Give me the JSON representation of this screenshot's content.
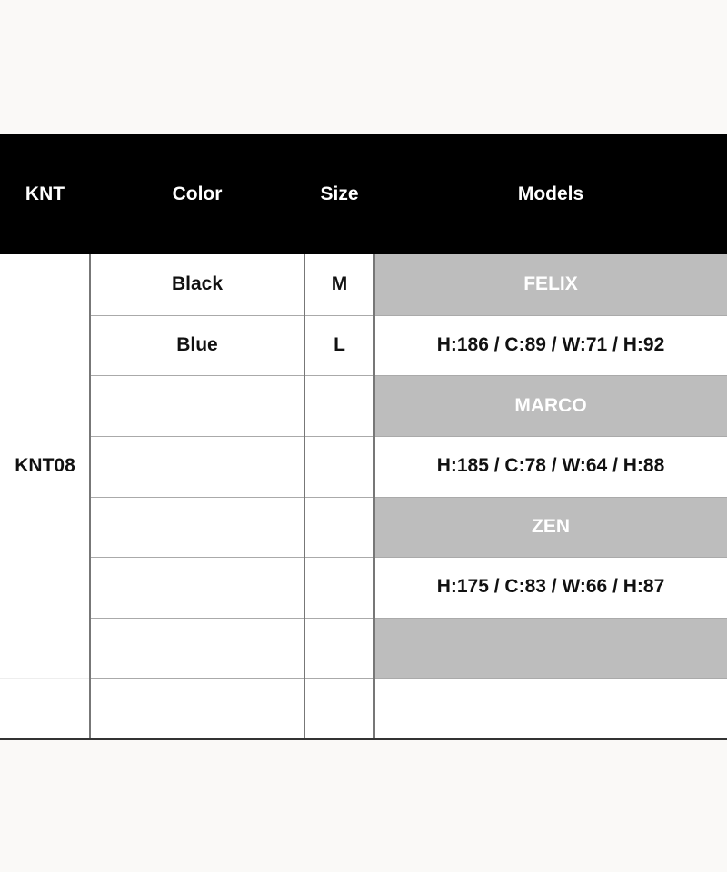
{
  "headers": [
    "KNT",
    "Color",
    "Size",
    "Models"
  ],
  "product_code": "KNT08",
  "rows": [
    {
      "color": "Black",
      "size": "M",
      "model": "FELIX",
      "model_style": "name"
    },
    {
      "color": "Blue",
      "size": "L",
      "model": "H:186 / C:89 / W:71 / H:92",
      "model_style": "measure"
    },
    {
      "color": "",
      "size": "",
      "model": "MARCO",
      "model_style": "name"
    },
    {
      "color": "",
      "size": "",
      "model": "H:185 / C:78 / W:64 / H:88",
      "model_style": "measure"
    },
    {
      "color": "",
      "size": "",
      "model": "ZEN",
      "model_style": "name"
    },
    {
      "color": "",
      "size": "",
      "model": "H:175 / C:83 / W:66 / H:87",
      "model_style": "measure"
    },
    {
      "color": "",
      "size": "",
      "model": "",
      "model_style": "name"
    },
    {
      "color": "",
      "size": "",
      "model": "",
      "model_style": "measure"
    }
  ],
  "colors": {
    "header_bg": "#000000",
    "model_name_bg": "#bdbdbd",
    "page_bg": "#faf9f7"
  }
}
